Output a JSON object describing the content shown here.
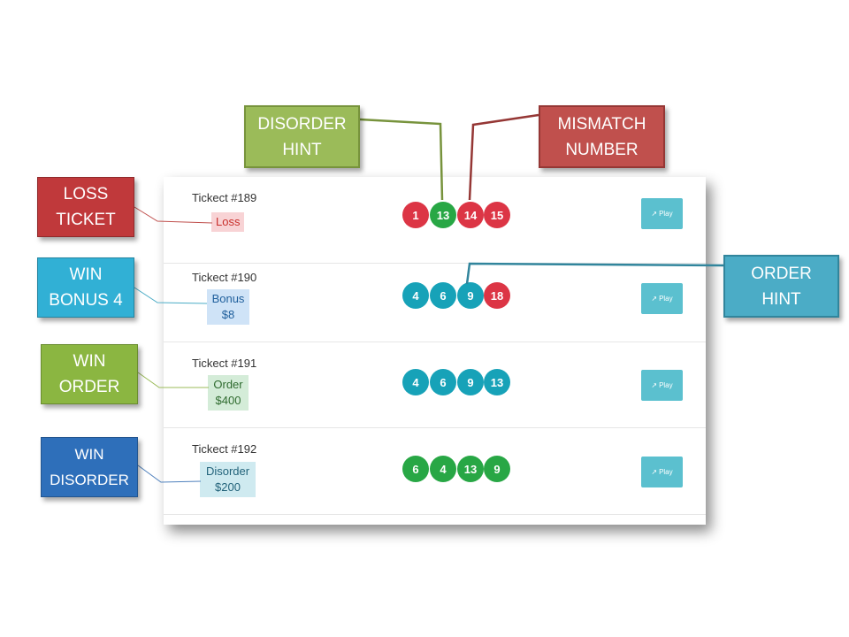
{
  "tickets": [
    {
      "title": "Tickect #189",
      "badge": "Loss",
      "badge_color": "#f8d3d5",
      "badge_text_color": "#c9302c",
      "balls": [
        {
          "n": "1",
          "color": "#dc3545"
        },
        {
          "n": "13",
          "color": "#28a745"
        },
        {
          "n": "14",
          "color": "#dc3545"
        },
        {
          "n": "15",
          "color": "#dc3545"
        }
      ],
      "play_label": "Play"
    },
    {
      "title": "Tickect #190",
      "badge_line1": "Bonus",
      "badge_line2": "$8",
      "badge_color": "#cfe3f7",
      "badge_text_color": "#1f5f9c",
      "balls": [
        {
          "n": "4",
          "color": "#17a2b8"
        },
        {
          "n": "6",
          "color": "#17a2b8"
        },
        {
          "n": "9",
          "color": "#17a2b8"
        },
        {
          "n": "18",
          "color": "#dc3545"
        }
      ],
      "play_label": "Play"
    },
    {
      "title": "Tickect #191",
      "badge_line1": "Order",
      "badge_line2": "$400",
      "badge_color": "#d4ecd8",
      "badge_text_color": "#2f6b2f",
      "balls": [
        {
          "n": "4",
          "color": "#17a2b8"
        },
        {
          "n": "6",
          "color": "#17a2b8"
        },
        {
          "n": "9",
          "color": "#17a2b8"
        },
        {
          "n": "13",
          "color": "#17a2b8"
        }
      ],
      "play_label": "Play"
    },
    {
      "title": "Tickect #192",
      "badge_line1": "Disorder",
      "badge_line2": "$200",
      "badge_color": "#cfeaf0",
      "badge_text_color": "#23637a",
      "balls": [
        {
          "n": "6",
          "color": "#28a745"
        },
        {
          "n": "4",
          "color": "#28a745"
        },
        {
          "n": "13",
          "color": "#28a745"
        },
        {
          "n": "9",
          "color": "#28a745"
        }
      ],
      "play_label": "Play"
    }
  ],
  "callouts": {
    "disorder_hint": {
      "text": "DISORDER\nHINT",
      "color": "#9bbb59"
    },
    "mismatch_number": {
      "text": "MISMATCH\nNUMBER",
      "color": "#c0504d"
    },
    "order_hint": {
      "text": "ORDER\nHINT",
      "color": "#4bacc6"
    },
    "loss_ticket": {
      "text": "LOSS\nTICKET",
      "color": "#c0393b"
    },
    "win_bonus_4": {
      "text": "WIN\nBONUS 4",
      "color": "#31b0d5"
    },
    "win_order": {
      "text": "WIN\nORDER",
      "color": "#8bb641"
    },
    "win_disorder": {
      "text": "WIN\nDISORDER",
      "color": "#2e6fba"
    }
  }
}
